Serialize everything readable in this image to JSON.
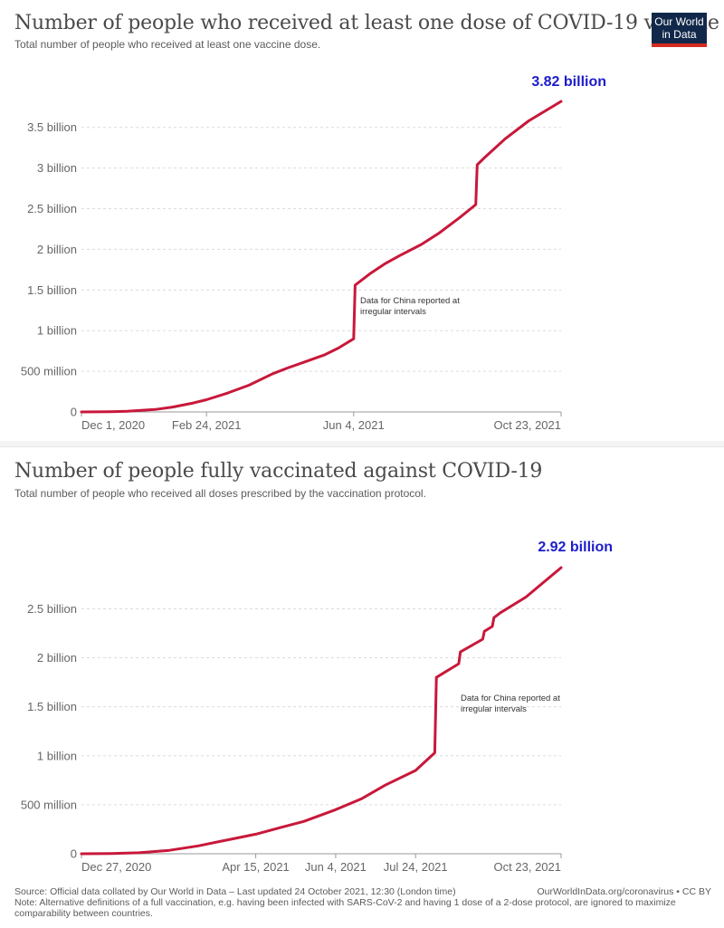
{
  "logo": {
    "line1": "Our World",
    "line2": "in Data",
    "colors": {
      "bg": "#12284a",
      "accent": "#d42b21"
    }
  },
  "line_color": "#c8183a",
  "end_label_color": "#1c1ccc",
  "footer": {
    "source": "Source: Official data collated by Our World in Data – Last updated 24 October 2021, 12:30 (London time)",
    "credit": "OurWorldInData.org/coronavirus • CC BY",
    "note": "Note: Alternative definitions of a full vaccination, e.g. having been infected with SARS-CoV-2 and having 1 dose of a 2-dose protocol, are ignored to maximize comparability between countries."
  },
  "chart_data": [
    {
      "type": "line",
      "title": "Number of people who received at least one dose of COVID-19 vaccine",
      "subtitle": "Total total number of people who received at least one vaccine dose.",
      "x_start": "2020-12-01",
      "x_end": "2021-10-23",
      "xlim": [
        "2020-12-01",
        "2021-10-23"
      ],
      "ylim": [
        0,
        3820000000
      ],
      "y_ticks": [
        0,
        500000000,
        1000000000,
        1500000000,
        2000000000,
        2500000000,
        3000000000,
        3500000000
      ],
      "y_tick_labels": [
        "0",
        "500 million",
        "1 billion",
        "1.5 billion",
        "2 billion",
        "2.5 billion",
        "3 billion",
        "3.5 billion"
      ],
      "x_ticks": [
        "2020-12-01",
        "2021-02-24",
        "2021-06-04",
        "2021-10-23"
      ],
      "x_tick_labels": [
        "Dec 1, 2020",
        "Feb 24, 2021",
        "Jun 4, 2021",
        "Oct 23, 2021"
      ],
      "grid": true,
      "end_label": "3.82 billion",
      "annotation": {
        "line1": "Data for China reported at",
        "line2": "irregular intervals"
      },
      "series": [
        {
          "x": [
            "2020-12-01",
            "2020-12-20",
            "2021-01-01",
            "2021-01-20",
            "2021-02-01",
            "2021-02-15",
            "2021-02-24",
            "2021-03-10",
            "2021-03-25",
            "2021-04-10",
            "2021-04-20",
            "2021-05-01",
            "2021-05-15",
            "2021-05-25",
            "2021-06-04",
            "2021-06-05",
            "2021-06-15",
            "2021-06-25",
            "2021-07-05",
            "2021-07-20",
            "2021-08-01",
            "2021-08-15",
            "2021-08-26",
            "2021-08-27",
            "2021-09-01",
            "2021-09-15",
            "2021-10-01",
            "2021-10-23"
          ],
          "y": [
            0,
            2000000,
            8000000,
            30000000,
            60000000,
            110000000,
            150000000,
            230000000,
            330000000,
            470000000,
            540000000,
            610000000,
            700000000,
            790000000,
            900000000,
            1560000000,
            1700000000,
            1820000000,
            1920000000,
            2060000000,
            2200000000,
            2390000000,
            2550000000,
            3040000000,
            3130000000,
            3360000000,
            3580000000,
            3820000000
          ]
        }
      ]
    },
    {
      "type": "line",
      "title": "Number of people fully vaccinated against COVID-19",
      "subtitle": "Total number of people who received all doses prescribed by the vaccination protocol.",
      "xlim": [
        "2020-12-27",
        "2021-10-23"
      ],
      "ylim": [
        0,
        2920000000
      ],
      "y_ticks": [
        0,
        500000000,
        1000000000,
        1500000000,
        2000000000,
        2500000000
      ],
      "y_tick_labels": [
        "0",
        "500 million",
        "1 billion",
        "1.5 billion",
        "2 billion",
        "2.5 billion"
      ],
      "x_ticks": [
        "2020-12-27",
        "2021-04-15",
        "2021-06-04",
        "2021-07-24",
        "2021-10-23"
      ],
      "x_tick_labels": [
        "Dec 27, 2020",
        "Apr 15, 2021",
        "Jun 4, 2021",
        "Jul 24, 2021",
        "Oct 23, 2021"
      ],
      "grid": true,
      "end_label": "2.92 billion",
      "annotation": {
        "line1": "Data for China reported at",
        "line2": "irregular intervals"
      },
      "series": [
        {
          "x": [
            "2020-12-27",
            "2021-01-15",
            "2021-02-01",
            "2021-02-20",
            "2021-03-10",
            "2021-03-25",
            "2021-04-15",
            "2021-05-01",
            "2021-05-15",
            "2021-06-04",
            "2021-06-20",
            "2021-07-05",
            "2021-07-24",
            "2021-08-05",
            "2021-08-06",
            "2021-08-20",
            "2021-08-21",
            "2021-09-04",
            "2021-09-05",
            "2021-09-10",
            "2021-09-11",
            "2021-09-15",
            "2021-10-01",
            "2021-10-23"
          ],
          "y": [
            0,
            3000000,
            10000000,
            35000000,
            80000000,
            130000000,
            200000000,
            270000000,
            330000000,
            450000000,
            560000000,
            700000000,
            850000000,
            1030000000,
            1800000000,
            1940000000,
            2060000000,
            2190000000,
            2270000000,
            2320000000,
            2410000000,
            2460000000,
            2620000000,
            2920000000
          ]
        }
      ]
    }
  ]
}
